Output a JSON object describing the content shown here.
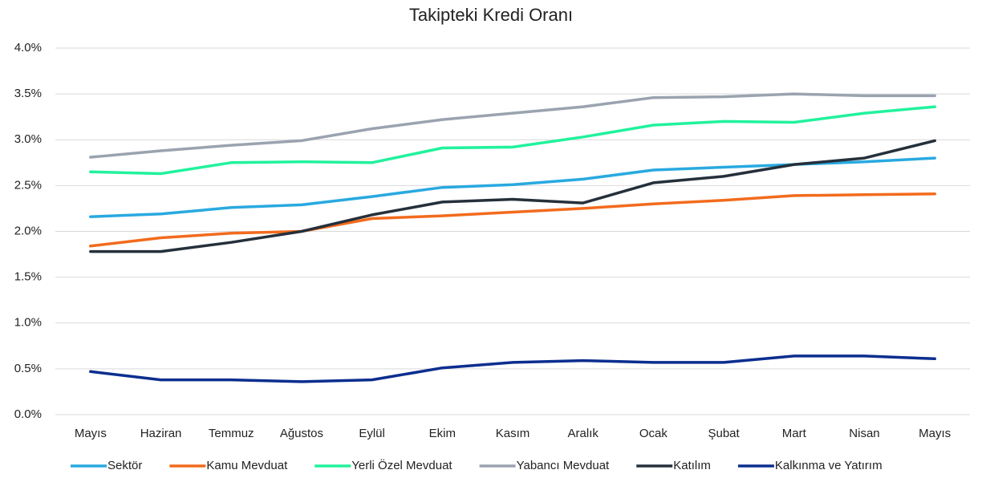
{
  "chart_data": {
    "type": "line",
    "title": "Takipteki Kredi Oranı",
    "categories": [
      "Mayıs",
      "Haziran",
      "Temmuz",
      "Ağustos",
      "Eylül",
      "Ekim",
      "Kasım",
      "Aralık",
      "Ocak",
      "Şubat",
      "Mart",
      "Nisan",
      "Mayıs"
    ],
    "ylim": [
      0,
      4.0
    ],
    "yticks": [
      {
        "value": 0,
        "label": "0.0%"
      },
      {
        "value": 0.5,
        "label": "0.5%"
      },
      {
        "value": 1.0,
        "label": "1.0%"
      },
      {
        "value": 1.5,
        "label": "1.5%"
      },
      {
        "value": 2.0,
        "label": "2.0%"
      },
      {
        "value": 2.5,
        "label": "2.5%"
      },
      {
        "value": 3.0,
        "label": "3.0%"
      },
      {
        "value": 3.5,
        "label": "3.5%"
      },
      {
        "value": 4.0,
        "label": "4.0%"
      }
    ],
    "grid": true,
    "legend": "bottom",
    "series": [
      {
        "name": "Sektör",
        "color": "#29a9e0",
        "values": [
          2.16,
          2.19,
          2.26,
          2.29,
          2.38,
          2.48,
          2.51,
          2.57,
          2.67,
          2.7,
          2.73,
          2.76,
          2.8
        ]
      },
      {
        "name": "Kamu Mevduat",
        "color": "#f26b1d",
        "values": [
          1.84,
          1.93,
          1.98,
          2.0,
          2.14,
          2.17,
          2.21,
          2.25,
          2.3,
          2.34,
          2.39,
          2.4,
          2.41
        ]
      },
      {
        "name": "Yerli Özel Mevduat",
        "color": "#21f29c",
        "values": [
          2.65,
          2.63,
          2.75,
          2.76,
          2.75,
          2.91,
          2.92,
          3.03,
          3.16,
          3.2,
          3.19,
          3.29,
          3.36
        ]
      },
      {
        "name": "Yabancı Mevduat",
        "color": "#9aa3af",
        "values": [
          2.81,
          2.88,
          2.94,
          2.99,
          3.12,
          3.22,
          3.29,
          3.36,
          3.46,
          3.47,
          3.5,
          3.48,
          3.48
        ]
      },
      {
        "name": "Katılım",
        "color": "#25303b",
        "values": [
          1.78,
          1.78,
          1.88,
          2.0,
          2.18,
          2.32,
          2.35,
          2.31,
          2.53,
          2.6,
          2.73,
          2.8,
          2.99
        ]
      },
      {
        "name": "Kalkınma ve Yatırım",
        "color": "#0b2e8f",
        "values": [
          0.47,
          0.38,
          0.38,
          0.36,
          0.38,
          0.51,
          0.57,
          0.59,
          0.57,
          0.57,
          0.64,
          0.64,
          0.61
        ]
      }
    ]
  }
}
